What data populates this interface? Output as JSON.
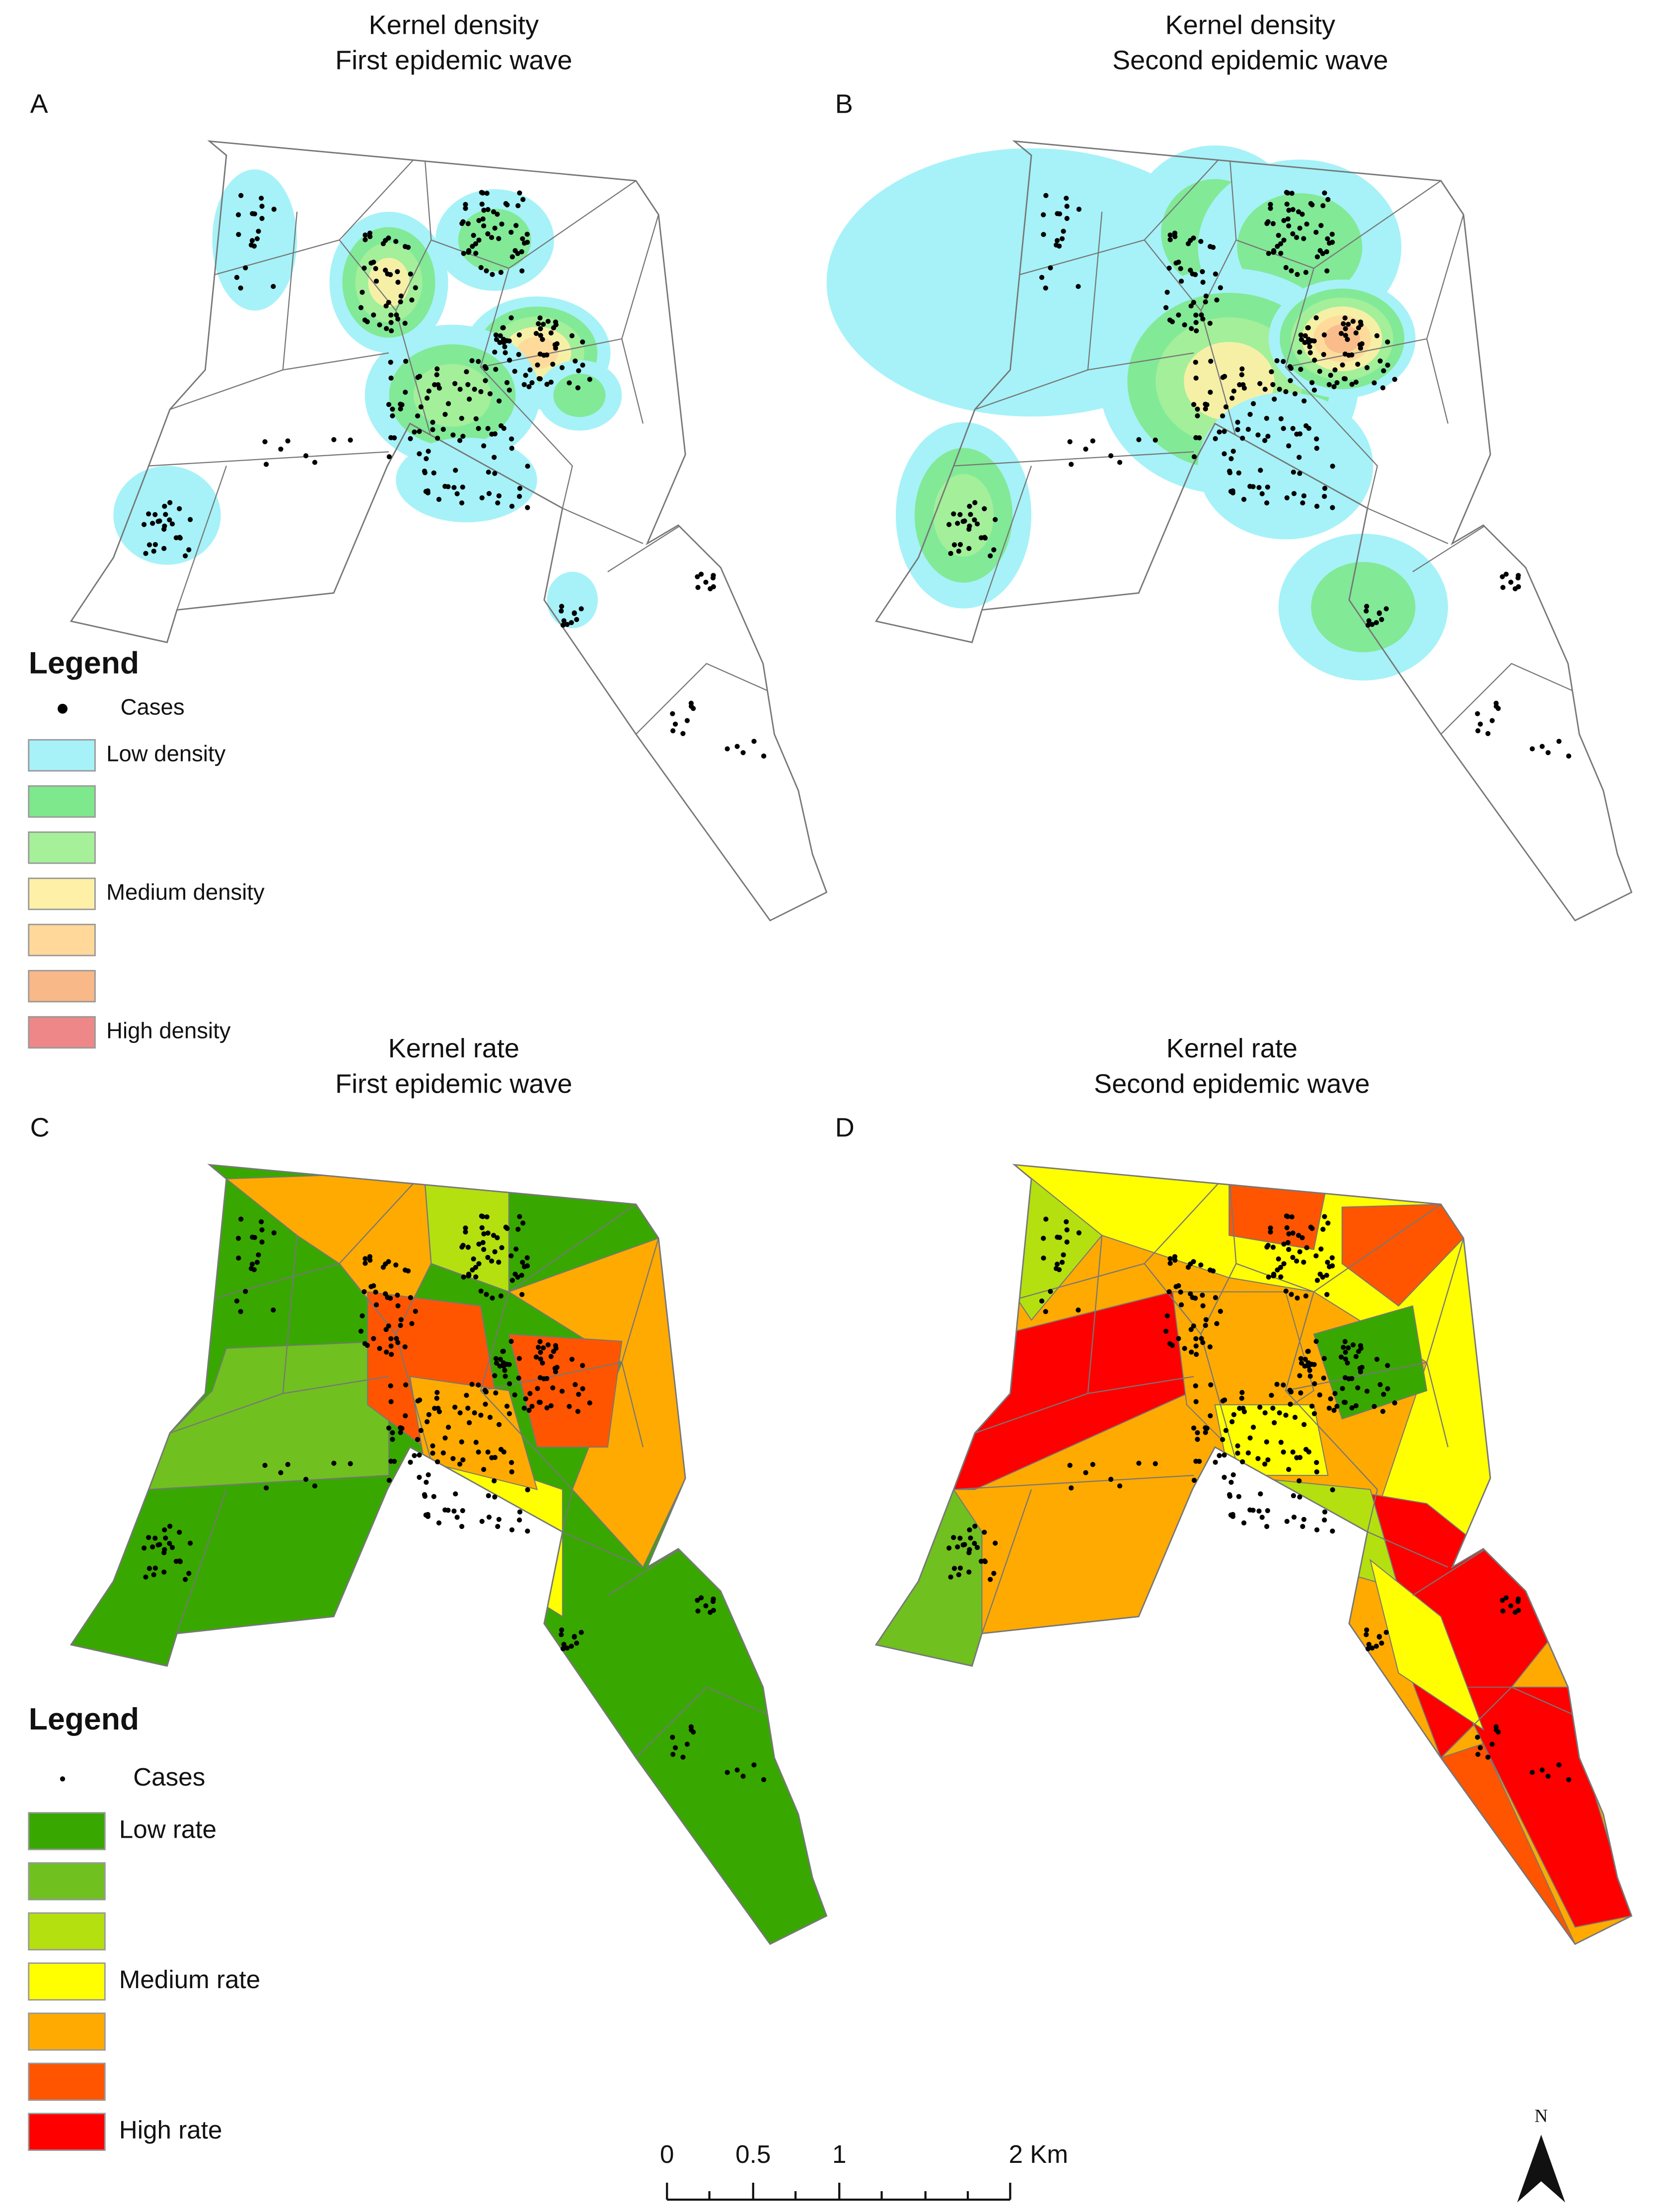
{
  "panels": [
    {
      "letter": "A",
      "title_line1": "Kernel density",
      "title_line2": "First epidemic wave"
    },
    {
      "letter": "B",
      "title_line1": "Kernel density",
      "title_line2": "Second epidemic wave"
    },
    {
      "letter": "C",
      "title_line1": "Kernel rate",
      "title_line2": "First epidemic wave"
    },
    {
      "letter": "D",
      "title_line1": "Kernel rate",
      "title_line2": "Second epidemic wave"
    }
  ],
  "legend_density": {
    "title": "Legend",
    "cases": "Cases",
    "labels": [
      "Low density",
      null,
      null,
      "Medium density",
      null,
      null,
      "High density"
    ],
    "colors": [
      "#a6f2f8",
      "#7ee88c",
      "#a6f09a",
      "#fff0a8",
      "#ffd89a",
      "#f8b888",
      "#ee8888"
    ]
  },
  "legend_rate": {
    "title": "Legend",
    "cases": "Cases",
    "labels": [
      "Low rate",
      null,
      null,
      "Medium rate",
      null,
      null,
      "High rate"
    ],
    "colors": [
      "#38a800",
      "#70c020",
      "#b4e010",
      "#ffff00",
      "#ffaa00",
      "#ff5500",
      "#ff0000"
    ]
  },
  "scale_bar": {
    "labels": [
      "0",
      "0.5",
      "1",
      "2 Km"
    ]
  },
  "north": "N"
}
